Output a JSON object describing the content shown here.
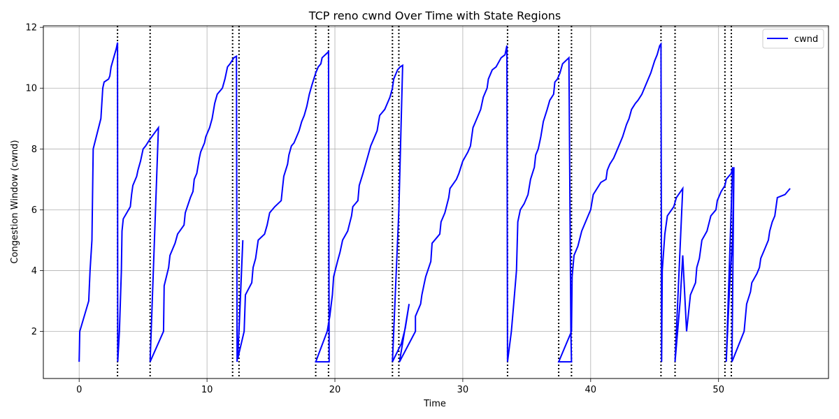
{
  "chart_data": {
    "type": "line",
    "title": "TCP reno cwnd Over Time with State Regions",
    "xlabel": "Time",
    "ylabel": "Congestion Window (cwnd)",
    "xlim": [
      -2.8,
      58.6
    ],
    "ylim": [
      0.45,
      12.05
    ],
    "xticks": [
      0,
      10,
      20,
      30,
      40,
      50
    ],
    "yticks": [
      2,
      4,
      6,
      8,
      10,
      12
    ],
    "grid": true,
    "legend_position": "top-right",
    "series": [
      {
        "name": "cwnd",
        "color": "#0000ff",
        "points": [
          [
            0,
            1
          ],
          [
            0.05,
            2
          ],
          [
            0.75,
            3
          ],
          [
            0.85,
            4
          ],
          [
            1.0,
            5
          ],
          [
            1.1,
            8
          ],
          [
            1.7,
            9
          ],
          [
            1.85,
            10
          ],
          [
            1.95,
            10.2
          ],
          [
            2.3,
            10.3
          ],
          [
            2.4,
            10.4
          ],
          [
            2.5,
            10.7
          ],
          [
            2.7,
            11
          ],
          [
            2.9,
            11.3
          ],
          [
            3.0,
            11.5
          ],
          [
            3.02,
            1
          ],
          [
            3.15,
            2
          ],
          [
            3.3,
            4
          ],
          [
            3.35,
            5.3
          ],
          [
            3.45,
            5.7
          ],
          [
            4.0,
            6.1
          ],
          [
            4.1,
            6.5
          ],
          [
            4.2,
            6.8
          ],
          [
            4.5,
            7.1
          ],
          [
            4.6,
            7.3
          ],
          [
            4.8,
            7.6
          ],
          [
            5.0,
            8.0
          ],
          [
            5.2,
            8.1
          ],
          [
            5.5,
            8.3
          ],
          [
            6.2,
            8.7
          ],
          [
            5.55,
            1
          ],
          [
            6.6,
            2
          ],
          [
            6.65,
            3.5
          ],
          [
            7.0,
            4.1
          ],
          [
            7.1,
            4.5
          ],
          [
            7.5,
            4.9
          ],
          [
            7.7,
            5.2
          ],
          [
            8.2,
            5.5
          ],
          [
            8.3,
            5.9
          ],
          [
            8.7,
            6.4
          ],
          [
            8.9,
            6.6
          ],
          [
            9.0,
            7.0
          ],
          [
            9.2,
            7.2
          ],
          [
            9.4,
            7.7
          ],
          [
            9.5,
            7.9
          ],
          [
            9.8,
            8.2
          ],
          [
            9.9,
            8.4
          ],
          [
            10.2,
            8.7
          ],
          [
            10.4,
            9.0
          ],
          [
            10.6,
            9.5
          ],
          [
            10.8,
            9.8
          ],
          [
            11.2,
            10.0
          ],
          [
            11.4,
            10.3
          ],
          [
            11.6,
            10.7
          ],
          [
            11.8,
            10.8
          ],
          [
            12.1,
            11.0
          ],
          [
            12.3,
            11.05
          ],
          [
            12.35,
            1
          ],
          [
            12.5,
            2
          ],
          [
            12.6,
            3
          ],
          [
            12.8,
            5
          ],
          [
            12.4,
            1.1
          ],
          [
            12.9,
            2
          ],
          [
            13.0,
            3.2
          ],
          [
            13.5,
            3.6
          ],
          [
            13.6,
            4.1
          ],
          [
            13.8,
            4.4
          ],
          [
            14.0,
            5.0
          ],
          [
            14.5,
            5.2
          ],
          [
            14.7,
            5.5
          ],
          [
            14.9,
            5.9
          ],
          [
            15.3,
            6.1
          ],
          [
            15.8,
            6.3
          ],
          [
            15.9,
            6.7
          ],
          [
            16.0,
            7.1
          ],
          [
            16.3,
            7.5
          ],
          [
            16.4,
            7.8
          ],
          [
            16.6,
            8.1
          ],
          [
            16.8,
            8.2
          ],
          [
            17.2,
            8.6
          ],
          [
            17.4,
            8.9
          ],
          [
            17.6,
            9.1
          ],
          [
            17.8,
            9.4
          ],
          [
            18.0,
            9.8
          ],
          [
            18.2,
            10.1
          ],
          [
            18.5,
            10.5
          ],
          [
            18.7,
            10.7
          ],
          [
            18.9,
            10.8
          ],
          [
            19.0,
            11.0
          ],
          [
            19.5,
            11.2
          ],
          [
            19.55,
            1
          ],
          [
            18.5,
            1
          ],
          [
            19.4,
            2
          ],
          [
            19.6,
            2.5
          ],
          [
            19.8,
            3.2
          ],
          [
            19.9,
            3.8
          ],
          [
            20.2,
            4.3
          ],
          [
            20.4,
            4.6
          ],
          [
            20.6,
            5.0
          ],
          [
            21.0,
            5.3
          ],
          [
            21.3,
            5.8
          ],
          [
            21.4,
            6.1
          ],
          [
            21.8,
            6.3
          ],
          [
            21.9,
            6.8
          ],
          [
            22.2,
            7.2
          ],
          [
            22.4,
            7.5
          ],
          [
            22.6,
            7.8
          ],
          [
            22.8,
            8.1
          ],
          [
            23.0,
            8.3
          ],
          [
            23.3,
            8.6
          ],
          [
            23.5,
            9.1
          ],
          [
            23.9,
            9.3
          ],
          [
            24.1,
            9.5
          ],
          [
            24.3,
            9.7
          ],
          [
            24.5,
            10.0
          ],
          [
            24.6,
            10.3
          ],
          [
            24.9,
            10.6
          ],
          [
            25.1,
            10.7
          ],
          [
            25.3,
            10.75
          ],
          [
            25.0,
            6
          ],
          [
            24.5,
            1
          ],
          [
            25.2,
            1.6
          ],
          [
            25.5,
            2.1
          ],
          [
            25.8,
            2.9
          ],
          [
            25.05,
            1
          ],
          [
            26.3,
            2
          ],
          [
            26.3,
            2.5
          ],
          [
            26.7,
            2.9
          ],
          [
            26.8,
            3.2
          ],
          [
            27.0,
            3.6
          ],
          [
            27.1,
            3.8
          ],
          [
            27.5,
            4.3
          ],
          [
            27.6,
            4.9
          ],
          [
            28.2,
            5.2
          ],
          [
            28.3,
            5.6
          ],
          [
            28.6,
            5.9
          ],
          [
            28.9,
            6.4
          ],
          [
            29.0,
            6.7
          ],
          [
            29.5,
            7.0
          ],
          [
            29.7,
            7.2
          ],
          [
            30.0,
            7.6
          ],
          [
            30.4,
            7.9
          ],
          [
            30.6,
            8.1
          ],
          [
            30.7,
            8.4
          ],
          [
            30.8,
            8.7
          ],
          [
            31.0,
            8.9
          ],
          [
            31.4,
            9.3
          ],
          [
            31.6,
            9.7
          ],
          [
            31.9,
            10.0
          ],
          [
            32.0,
            10.3
          ],
          [
            32.3,
            10.6
          ],
          [
            32.6,
            10.7
          ],
          [
            33.0,
            11.0
          ],
          [
            33.3,
            11.1
          ],
          [
            33.45,
            11.4
          ],
          [
            33.5,
            1
          ],
          [
            33.8,
            2
          ],
          [
            34.0,
            3
          ],
          [
            34.2,
            4
          ],
          [
            34.3,
            5.6
          ],
          [
            34.5,
            6.0
          ],
          [
            34.8,
            6.2
          ],
          [
            35.1,
            6.5
          ],
          [
            35.3,
            7.0
          ],
          [
            35.6,
            7.4
          ],
          [
            35.7,
            7.8
          ],
          [
            35.9,
            8.0
          ],
          [
            36.1,
            8.4
          ],
          [
            36.3,
            8.9
          ],
          [
            36.6,
            9.3
          ],
          [
            36.8,
            9.6
          ],
          [
            37.1,
            9.8
          ],
          [
            37.2,
            10.2
          ],
          [
            37.4,
            10.3
          ],
          [
            37.6,
            10.5
          ],
          [
            37.8,
            10.8
          ],
          [
            38.3,
            11.0
          ],
          [
            38.45,
            2
          ],
          [
            38.5,
            1
          ],
          [
            37.5,
            1
          ],
          [
            38.5,
            2
          ],
          [
            38.55,
            3.8
          ],
          [
            38.7,
            4.5
          ],
          [
            39.0,
            4.8
          ],
          [
            39.3,
            5.3
          ],
          [
            39.6,
            5.6
          ],
          [
            39.8,
            5.8
          ],
          [
            40.0,
            6.0
          ],
          [
            40.2,
            6.5
          ],
          [
            40.5,
            6.7
          ],
          [
            40.8,
            6.9
          ],
          [
            41.2,
            7.0
          ],
          [
            41.3,
            7.3
          ],
          [
            41.5,
            7.5
          ],
          [
            41.8,
            7.7
          ],
          [
            42.0,
            7.9
          ],
          [
            42.3,
            8.2
          ],
          [
            42.5,
            8.4
          ],
          [
            42.8,
            8.8
          ],
          [
            43.0,
            9.0
          ],
          [
            43.2,
            9.3
          ],
          [
            43.5,
            9.5
          ],
          [
            43.7,
            9.6
          ],
          [
            44.0,
            9.8
          ],
          [
            44.3,
            10.1
          ],
          [
            44.7,
            10.5
          ],
          [
            45.0,
            10.9
          ],
          [
            45.2,
            11.1
          ],
          [
            45.4,
            11.4
          ],
          [
            45.5,
            11.45
          ],
          [
            45.55,
            1
          ],
          [
            45.6,
            4.0
          ],
          [
            45.8,
            5.2
          ],
          [
            46.0,
            5.8
          ],
          [
            46.5,
            6.1
          ],
          [
            46.7,
            6.4
          ],
          [
            47.2,
            6.7
          ],
          [
            46.6,
            1
          ],
          [
            47.0,
            3
          ],
          [
            47.2,
            4.5
          ],
          [
            47.5,
            2
          ],
          [
            47.8,
            3.2
          ],
          [
            48.2,
            3.6
          ],
          [
            48.3,
            4.1
          ],
          [
            48.5,
            4.4
          ],
          [
            48.7,
            5.0
          ],
          [
            49.1,
            5.3
          ],
          [
            49.4,
            5.8
          ],
          [
            49.8,
            6.0
          ],
          [
            49.9,
            6.3
          ],
          [
            50.2,
            6.6
          ],
          [
            50.5,
            6.8
          ],
          [
            50.6,
            7.0
          ],
          [
            51.0,
            7.2
          ],
          [
            51.1,
            7.4
          ],
          [
            50.6,
            1
          ],
          [
            50.9,
            3.8
          ],
          [
            51.1,
            5.0
          ],
          [
            51.2,
            7.4
          ],
          [
            51.05,
            1
          ],
          [
            52.0,
            2
          ],
          [
            52.2,
            2.9
          ],
          [
            52.5,
            3.3
          ],
          [
            52.6,
            3.6
          ],
          [
            53.0,
            3.9
          ],
          [
            53.2,
            4.1
          ],
          [
            53.3,
            4.4
          ],
          [
            53.6,
            4.7
          ],
          [
            53.9,
            5.0
          ],
          [
            54.0,
            5.3
          ],
          [
            54.2,
            5.6
          ],
          [
            54.4,
            5.8
          ],
          [
            54.6,
            6.4
          ],
          [
            55.2,
            6.5
          ],
          [
            55.6,
            6.7
          ]
        ]
      }
    ],
    "state_lines": [
      3.0,
      5.55,
      12.0,
      12.5,
      18.5,
      19.5,
      24.5,
      25.0,
      33.5,
      37.5,
      38.5,
      45.5,
      46.6,
      50.5,
      51.0
    ],
    "state_line_style": "dotted",
    "state_line_color": "#000000"
  }
}
